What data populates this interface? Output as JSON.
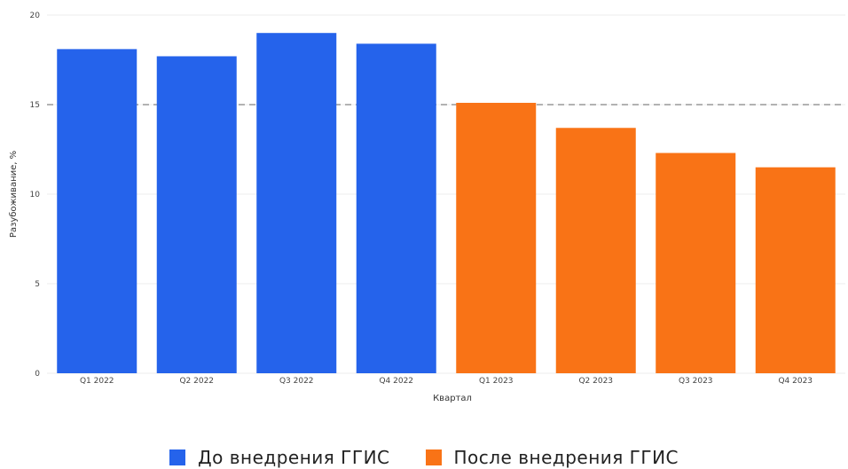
{
  "chart_data": {
    "type": "bar",
    "categories": [
      "Q1 2022",
      "Q2 2022",
      "Q3 2022",
      "Q4 2022",
      "Q1 2023",
      "Q2 2023",
      "Q3 2023",
      "Q4 2023"
    ],
    "series": [
      {
        "name": "До внедрения ГГИС",
        "color": "#2563eb",
        "values": [
          18.1,
          17.7,
          19.0,
          18.4,
          null,
          null,
          null,
          null
        ]
      },
      {
        "name": "После внедрения ГГИС",
        "color": "#f97316",
        "values": [
          null,
          null,
          null,
          null,
          15.1,
          13.7,
          12.3,
          11.5
        ]
      }
    ],
    "reference_line": {
      "value": 15,
      "style": "dashed",
      "color": "#999999"
    },
    "xlabel": "Квартал",
    "ylabel": "Разубоживание, %",
    "ylim": [
      0,
      20
    ],
    "yticks": [
      0,
      5,
      10,
      15,
      20
    ],
    "grid": true,
    "legend_position": "bottom-center"
  }
}
